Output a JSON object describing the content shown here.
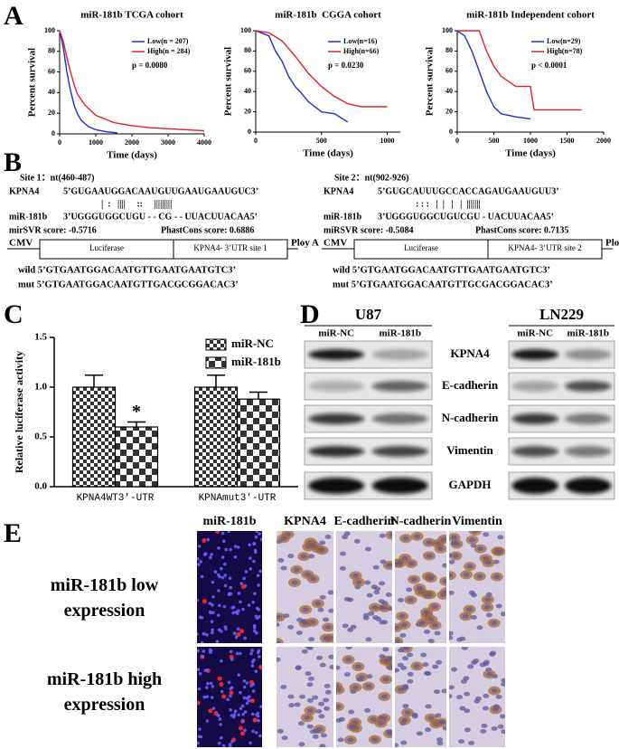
{
  "panel_labels": {
    "a": "A",
    "b": "B",
    "c": "C",
    "d": "D",
    "e": "E"
  },
  "chart_data": [
    {
      "type": "line",
      "title": "miR-181b TCGA cohort",
      "x_label": "Time (days)",
      "y_label": "Percent survival",
      "xlim": [
        0,
        4000
      ],
      "ylim": [
        0,
        100
      ],
      "xticks": [
        0,
        1000,
        2000,
        3000,
        4000
      ],
      "yticks": [
        0,
        20,
        40,
        60,
        80,
        100
      ],
      "annotation": "p = 0.0080",
      "series": [
        {
          "name": "Low(n = 207)",
          "color": "#1f2fd0",
          "x": [
            0,
            100,
            200,
            300,
            400,
            500,
            600,
            800,
            1000,
            1300,
            1600
          ],
          "values": [
            100,
            84,
            60,
            42,
            28,
            19,
            13,
            7,
            4,
            2,
            1
          ]
        },
        {
          "name": "High(n = 284)",
          "color": "#e0202a",
          "x": [
            0,
            100,
            200,
            300,
            400,
            500,
            700,
            1000,
            1500,
            2000,
            2500,
            3000,
            3500,
            4000
          ],
          "values": [
            100,
            90,
            74,
            60,
            48,
            38,
            28,
            18,
            11,
            8,
            6,
            5,
            4,
            3
          ]
        }
      ]
    },
    {
      "type": "line",
      "title": "miR-181b  CGGA cohort",
      "x_label": "Time (days)",
      "y_label": "Percent survival",
      "xlim": [
        0,
        1100
      ],
      "ylim": [
        0,
        100
      ],
      "xticks": [
        0,
        500,
        1000
      ],
      "yticks": [
        0,
        20,
        40,
        60,
        80,
        100
      ],
      "annotation": "p = 0.0230",
      "series": [
        {
          "name": "Low(n=16)",
          "color": "#1f2fd0",
          "x": [
            0,
            100,
            150,
            200,
            250,
            300,
            350,
            400,
            500,
            600,
            700
          ],
          "values": [
            100,
            95,
            80,
            70,
            55,
            45,
            38,
            30,
            20,
            18,
            10
          ]
        },
        {
          "name": "High(n=66)",
          "color": "#e0202a",
          "x": [
            0,
            100,
            200,
            300,
            400,
            500,
            600,
            700,
            800,
            1000
          ],
          "values": [
            100,
            98,
            90,
            75,
            58,
            45,
            35,
            28,
            25,
            25
          ]
        }
      ]
    },
    {
      "type": "line",
      "title": "miR-181b Independent cohort",
      "x_label": "Time (days)",
      "y_label": "Percent survival",
      "xlim": [
        0,
        2000
      ],
      "ylim": [
        0,
        100
      ],
      "xticks": [
        0,
        500,
        1000,
        1500,
        2000
      ],
      "yticks": [
        0,
        20,
        40,
        60,
        80,
        100
      ],
      "annotation": "p < 0.0001",
      "series": [
        {
          "name": "Low(n=29)",
          "color": "#1f2fd0",
          "x": [
            0,
            100,
            200,
            300,
            400,
            500,
            600,
            800,
            1000
          ],
          "values": [
            100,
            95,
            80,
            60,
            40,
            25,
            18,
            15,
            13
          ]
        },
        {
          "name": "High(n=78)",
          "color": "#e0202a",
          "x": [
            0,
            300,
            400,
            500,
            600,
            800,
            1000,
            1050,
            1700
          ],
          "values": [
            100,
            100,
            80,
            65,
            55,
            45,
            45,
            22,
            22
          ]
        }
      ]
    },
    {
      "type": "bar",
      "y_label": "Relative luciferase activity",
      "annotation": "*",
      "categories": [
        "KPNA4WT3'-UTR",
        "KPNAmut3'-UTR"
      ],
      "ylim": [
        0,
        1.5
      ],
      "yticks": [
        {
          "value": 0,
          "label": "0.0"
        },
        0.5,
        {
          "value": 1,
          "label": "1.0"
        },
        1.5
      ],
      "series": [
        {
          "name": "miR-NC",
          "color": "#333333",
          "values": [
            1.0,
            1.0
          ],
          "errors": [
            0.12,
            0.12
          ]
        },
        {
          "name": "miR-181b",
          "color": "#333333",
          "values": [
            0.6,
            0.88
          ],
          "errors": [
            0.05,
            0.07
          ]
        }
      ]
    }
  ],
  "panel_b": {
    "sites": [
      {
        "header": "Site 1：nt(460-487)",
        "target_label": "KPNA4",
        "target": "5’GUGAAUGGACAAUGUUGAAUGAAUGUC3’",
        "pairing": "|  :   ||||     ::     |||||||||",
        "mirna_label": "miR-181b",
        "mirna": "3’UGGGUGGCUGU - - CG - - UUACUUACAA5’",
        "mirsvr": "mirSVR score: -0.5716",
        "phastcons": "PhastCons score: 0.6886",
        "construct": [
          "CMV",
          "Luciferase",
          "KPNA4- 3’UTR site 1",
          "Ploy A"
        ],
        "wild": "wild 5’GTGAATGGACAATGTTGAATGAATGTC3’",
        "mut": "mut 5’GTGAATGGACAATGTTGACGCGGACAC3’"
      },
      {
        "header": "Site 2：nt(902-926)",
        "target_label": "KPNA4",
        "target": "5’GUGCAUUUGCCACCAGAUGAAUGUU3’",
        "pairing": ": : :   |  |   |   |  |||||||",
        "mirna_label": "miR-181b",
        "mirna": "3’UGGGUGGCUGUCGU - UACUUACAA5’",
        "mirsvr": "miRSVR score: -0.5084",
        "phastcons": "PhastCons score: 0.7135",
        "construct": [
          "CMV",
          "Luciferase",
          "KPNA4- 3’UTR site 2",
          "Ploy A"
        ],
        "wild": "wild 5’GTGAATGGACAATGTTGAATGAATGTC3’",
        "mut": "mut 5’GTGAATGGACAATGTTGCGACGGACAC3’"
      }
    ]
  },
  "panel_d": {
    "cell_lines": [
      {
        "name": "U87",
        "lanes": [
          "miR-NC",
          "miR-181b"
        ]
      },
      {
        "name": "LN229",
        "lanes": [
          "miR-NC",
          "miR-181b"
        ]
      }
    ],
    "proteins": [
      "KPNA4",
      "E-cadherin",
      "N-cadherin",
      "Vimentin",
      "GAPDH"
    ]
  },
  "panel_e": {
    "columns": [
      "miR-181b",
      "KPNA4",
      "E-cadherin",
      "N-cadherin",
      "Vimentin"
    ],
    "rows": [
      "miR-181b low expression",
      "miR-181b high expression"
    ]
  }
}
